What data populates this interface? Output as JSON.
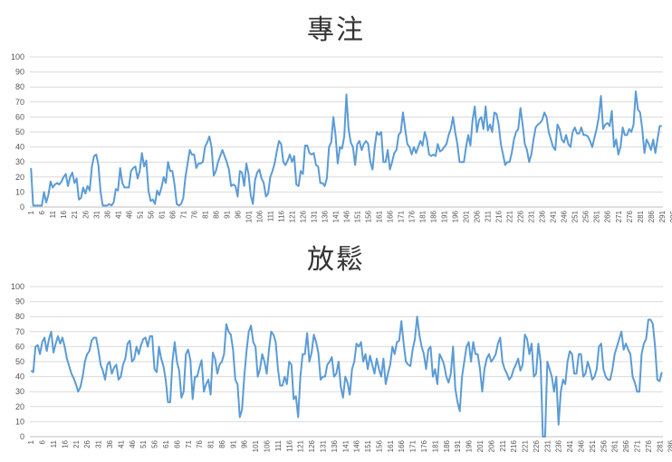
{
  "chart_data": [
    {
      "type": "line",
      "title": "專注",
      "ylim": [
        0,
        100
      ],
      "yticks": [
        0,
        10,
        20,
        30,
        40,
        50,
        60,
        70,
        80,
        90,
        100
      ],
      "x_tick_labels": [
        1,
        6,
        11,
        16,
        21,
        26,
        31,
        36,
        41,
        46,
        51,
        56,
        61,
        66,
        71,
        76,
        81,
        86,
        91,
        96,
        101,
        106,
        111,
        116,
        121,
        126,
        131,
        136,
        141,
        146,
        151,
        156,
        161,
        166,
        171,
        176,
        181,
        186,
        191,
        196,
        201,
        206,
        211,
        216,
        221,
        226,
        231,
        236,
        241,
        246,
        251,
        256,
        261,
        266,
        271,
        276,
        281,
        286,
        291,
        296
      ],
      "grid": true,
      "series_color": "#5b9bd5",
      "values": [
        26,
        1,
        1,
        1,
        1,
        1,
        10,
        3,
        8,
        17,
        13,
        15,
        16,
        15,
        17,
        20,
        22,
        14,
        20,
        23,
        16,
        19,
        5,
        6,
        13,
        9,
        14,
        11,
        27,
        34,
        35,
        28,
        10,
        1,
        1,
        1,
        2,
        1,
        3,
        12,
        11,
        26,
        16,
        13,
        13,
        13,
        24,
        26,
        27,
        19,
        24,
        36,
        27,
        31,
        11,
        4,
        5,
        2,
        11,
        8,
        13,
        20,
        16,
        30,
        24,
        24,
        15,
        2,
        1,
        2,
        6,
        20,
        29,
        38,
        35,
        35,
        26,
        29,
        29,
        30,
        40,
        43,
        47,
        40,
        21,
        24,
        30,
        34,
        38,
        34,
        30,
        25,
        14,
        15,
        14,
        7,
        24,
        23,
        14,
        29,
        22,
        8,
        2,
        18,
        23,
        25,
        19,
        16,
        7,
        9,
        20,
        24,
        29,
        37,
        44,
        42,
        30,
        28,
        31,
        35,
        30,
        34,
        15,
        14,
        24,
        22,
        41,
        41,
        36,
        35,
        36,
        28,
        27,
        16,
        16,
        14,
        19,
        40,
        43,
        60,
        48,
        29,
        40,
        39,
        47,
        75,
        52,
        43,
        40,
        28,
        42,
        44,
        38,
        42,
        44,
        42,
        30,
        25,
        40,
        50,
        48,
        50,
        30,
        30,
        38,
        25,
        30,
        36,
        38,
        48,
        50,
        63,
        52,
        42,
        40,
        35,
        40,
        36,
        40,
        44,
        41,
        50,
        45,
        35,
        34,
        35,
        34,
        42,
        37,
        38,
        40,
        42,
        48,
        52,
        60,
        50,
        42,
        30,
        30,
        30,
        40,
        48,
        41,
        58,
        67,
        50,
        58,
        60,
        52,
        67,
        51,
        55,
        50,
        63,
        62,
        55,
        42,
        35,
        28,
        30,
        30,
        36,
        45,
        50,
        52,
        66,
        55,
        42,
        38,
        30,
        35,
        45,
        53,
        55,
        56,
        58,
        63,
        60,
        50,
        45,
        40,
        38,
        55,
        52,
        45,
        43,
        48,
        42,
        40,
        50,
        53,
        49,
        49,
        53,
        48,
        48,
        47,
        44,
        40,
        46,
        52,
        60,
        74,
        52,
        55,
        56,
        54,
        64,
        40,
        45,
        35,
        40,
        53,
        48,
        48,
        52,
        50,
        55,
        77,
        65,
        63,
        52,
        36,
        45,
        42,
        38,
        45,
        36,
        45,
        54,
        54
      ]
    },
    {
      "type": "line",
      "title": "放鬆",
      "ylim": [
        0,
        100
      ],
      "yticks": [
        0,
        10,
        20,
        30,
        40,
        50,
        60,
        70,
        80,
        90,
        100
      ],
      "x_tick_labels": [
        1,
        6,
        11,
        16,
        21,
        26,
        31,
        36,
        41,
        46,
        51,
        56,
        61,
        66,
        71,
        76,
        81,
        86,
        91,
        96,
        101,
        106,
        111,
        116,
        121,
        126,
        131,
        136,
        141,
        146,
        151,
        156,
        161,
        166,
        171,
        176,
        181,
        186,
        191,
        196,
        201,
        206,
        211,
        216,
        221,
        226,
        231,
        236,
        241,
        246,
        251,
        256,
        261,
        266,
        271,
        276,
        281,
        286,
        291,
        296
      ],
      "grid": true,
      "series_color": "#5b9bd5",
      "values": [
        44,
        43,
        60,
        61,
        55,
        63,
        66,
        57,
        65,
        70,
        56,
        62,
        67,
        62,
        66,
        60,
        52,
        47,
        42,
        39,
        35,
        30,
        33,
        40,
        50,
        55,
        57,
        64,
        66,
        66,
        58,
        48,
        44,
        38,
        48,
        50,
        42,
        46,
        48,
        38,
        40,
        48,
        52,
        62,
        64,
        50,
        52,
        60,
        55,
        61,
        65,
        66,
        60,
        67,
        67,
        45,
        43,
        60,
        52,
        47,
        38,
        23,
        23,
        50,
        63,
        50,
        44,
        26,
        30,
        55,
        58,
        51,
        25,
        40,
        40,
        46,
        51,
        30,
        35,
        38,
        28,
        56,
        52,
        42,
        48,
        50,
        55,
        75,
        70,
        68,
        58,
        38,
        35,
        13,
        18,
        40,
        57,
        70,
        74,
        63,
        60,
        40,
        45,
        55,
        50,
        42,
        58,
        70,
        68,
        63,
        45,
        34,
        34,
        40,
        35,
        50,
        48,
        25,
        27,
        13,
        40,
        55,
        55,
        69,
        50,
        56,
        68,
        63,
        56,
        38,
        40,
        40,
        48,
        50,
        53,
        40,
        42,
        50,
        33,
        26,
        40,
        36,
        28,
        45,
        50,
        62,
        60,
        63,
        50,
        55,
        45,
        54,
        48,
        42,
        52,
        45,
        40,
        52,
        35,
        42,
        48,
        60,
        55,
        63,
        64,
        77,
        62,
        50,
        48,
        47,
        58,
        65,
        80,
        68,
        60,
        55,
        45,
        58,
        60,
        40,
        45,
        35,
        55,
        52,
        48,
        40,
        36,
        42,
        60,
        32,
        23,
        17,
        40,
        50,
        60,
        63,
        50,
        63,
        55,
        55,
        45,
        30,
        45,
        52,
        55,
        50,
        52,
        55,
        62,
        66,
        50,
        45,
        42,
        38,
        40,
        45,
        48,
        52,
        44,
        48,
        68,
        65,
        55,
        62,
        40,
        42,
        62,
        50,
        0,
        0,
        50,
        45,
        40,
        30,
        40,
        8,
        30,
        38,
        35,
        50,
        57,
        55,
        42,
        42,
        55,
        55,
        40,
        42,
        50,
        45,
        38,
        40,
        45,
        60,
        62,
        45,
        40,
        38,
        38,
        45,
        55,
        60,
        65,
        70,
        58,
        62,
        58,
        55,
        40,
        36,
        30,
        30,
        55,
        62,
        65,
        78,
        78,
        75,
        60,
        38,
        37,
        43
      ]
    }
  ]
}
